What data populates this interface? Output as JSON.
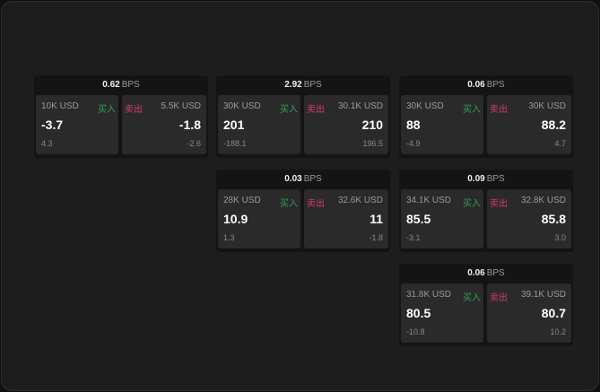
{
  "unit": "BPS",
  "buy_label": "买入",
  "sell_label": "卖出",
  "colors": {
    "buy": "#2fa25a",
    "sell": "#d8396a"
  },
  "quotes": [
    {
      "bps": "0.62",
      "buy": {
        "size": "10K USD",
        "price": "-3.7",
        "change": "4.3"
      },
      "sell": {
        "size": "5.5K USD",
        "price": "-1.8",
        "change": "-2.6"
      }
    },
    {
      "bps": "2.92",
      "buy": {
        "size": "30K USD",
        "price": "201",
        "change": "-188.1"
      },
      "sell": {
        "size": "30.1K USD",
        "price": "210",
        "change": "196.5"
      }
    },
    {
      "bps": "0.06",
      "buy": {
        "size": "30K USD",
        "price": "88",
        "change": "-4.9"
      },
      "sell": {
        "size": "30K USD",
        "price": "88.2",
        "change": "4.7"
      }
    },
    {
      "bps": "0.03",
      "buy": {
        "size": "28K USD",
        "price": "10.9",
        "change": "1.3"
      },
      "sell": {
        "size": "32.6K USD",
        "price": "11",
        "change": "-1.8"
      }
    },
    {
      "bps": "0.09",
      "buy": {
        "size": "34.1K USD",
        "price": "85.5",
        "change": "-3.1"
      },
      "sell": {
        "size": "32.8K USD",
        "price": "85.8",
        "change": "3.0"
      }
    },
    {
      "bps": "0.06",
      "buy": {
        "size": "31.8K USD",
        "price": "80.5",
        "change": "-10.8"
      },
      "sell": {
        "size": "39.1K USD",
        "price": "80.7",
        "change": "10.2"
      }
    }
  ]
}
